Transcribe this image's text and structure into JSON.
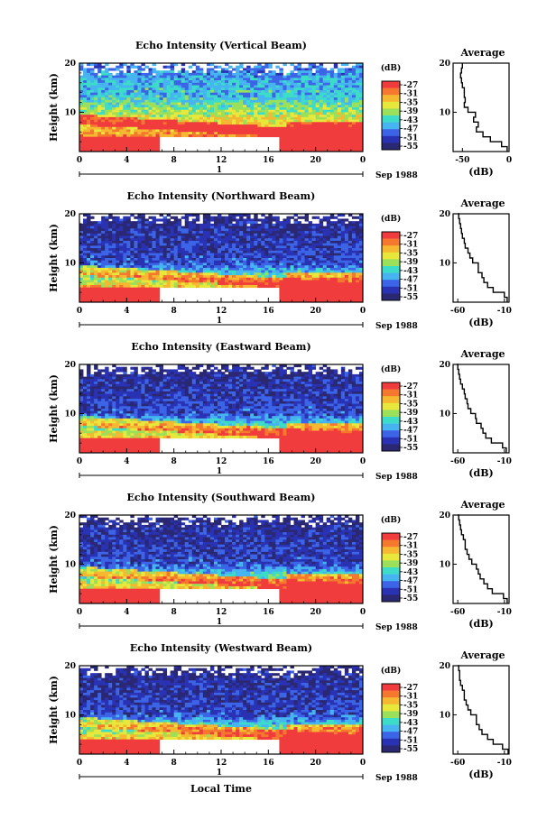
{
  "figure": {
    "xlabel": "Local Time",
    "date_label": "Sep 1988",
    "day_label": "1",
    "ylabel": "Height (km)",
    "colorbar_unit": "(dB)",
    "colorbar_ticks": [
      "-27",
      "-31",
      "-35",
      "-39",
      "-43",
      "-47",
      "-51",
      "-55"
    ],
    "colorbar_colors": [
      "#f03c3c",
      "#f5782e",
      "#f5b830",
      "#e8e83c",
      "#9be05a",
      "#3cdcc8",
      "#46b4f0",
      "#3c64e6",
      "#2a32b4",
      "#2a2872"
    ],
    "avg_title": "Average",
    "avg_xlabel": "(dB)"
  },
  "chart_data": [
    {
      "type": "heatmap",
      "title": "Echo Intensity (Vertical Beam)",
      "x_ticks": [
        "0",
        "4",
        "8",
        "12",
        "16",
        "20",
        "0"
      ],
      "y_ticks": [
        "20",
        "10"
      ],
      "xlim": [
        0,
        24
      ],
      "ylim": [
        2,
        20
      ],
      "no_data_hours": [
        6.8,
        17
      ],
      "profile": {
        "title": "Average",
        "x_ticks": [
          "-50",
          "0"
        ],
        "xlim": [
          -60,
          0
        ],
        "y_ticks": [
          "20",
          "10"
        ],
        "ylim": [
          2,
          20
        ],
        "height_km": [
          2,
          3,
          4,
          5,
          6,
          7,
          8,
          9,
          10,
          11,
          12,
          13,
          14,
          15,
          16,
          17,
          18,
          19,
          20
        ],
        "db": [
          -2,
          -8,
          -20,
          -28,
          -35,
          -33,
          -38,
          -36,
          -44,
          -48,
          -47,
          -48,
          -48,
          -50,
          -51,
          -52,
          -51,
          -50,
          -50
        ]
      }
    },
    {
      "type": "heatmap",
      "title": "Echo Intensity (Northward Beam)",
      "x_ticks": [
        "0",
        "4",
        "8",
        "12",
        "16",
        "20",
        "0"
      ],
      "y_ticks": [
        "20",
        "10"
      ],
      "xlim": [
        0,
        24
      ],
      "ylim": [
        2,
        20
      ],
      "no_data_hours": [
        6.8,
        17
      ],
      "profile": {
        "title": "Average",
        "x_ticks": [
          "-60",
          "-10"
        ],
        "xlim": [
          -65,
          -5
        ],
        "y_ticks": [
          "20",
          "10"
        ],
        "ylim": [
          2,
          20
        ],
        "height_km": [
          2,
          3,
          4,
          5,
          6,
          7,
          8,
          9,
          10,
          11,
          12,
          13,
          14,
          15,
          16,
          17,
          18,
          19,
          20
        ],
        "db": [
          -7,
          -10,
          -22,
          -28,
          -32,
          -34,
          -38,
          -38,
          -44,
          -47,
          -49,
          -52,
          -53,
          -55,
          -56,
          -57,
          -58,
          -59,
          -60
        ]
      }
    },
    {
      "type": "heatmap",
      "title": "Echo Intensity (Eastward Beam)",
      "x_ticks": [
        "0",
        "4",
        "8",
        "12",
        "16",
        "20",
        "0"
      ],
      "y_ticks": [
        "20",
        "10"
      ],
      "xlim": [
        0,
        24
      ],
      "ylim": [
        2,
        20
      ],
      "no_data_hours": [
        6.8,
        17
      ],
      "profile": {
        "title": "Average",
        "x_ticks": [
          "-60",
          "-10"
        ],
        "xlim": [
          -65,
          -5
        ],
        "y_ticks": [
          "20",
          "10"
        ],
        "ylim": [
          2,
          20
        ],
        "height_km": [
          2,
          3,
          4,
          5,
          6,
          7,
          8,
          9,
          10,
          11,
          12,
          13,
          14,
          15,
          16,
          17,
          18,
          19,
          20
        ],
        "db": [
          -8,
          -12,
          -24,
          -30,
          -33,
          -35,
          -40,
          -41,
          -46,
          -49,
          -50,
          -52,
          -53,
          -55,
          -57,
          -58,
          -59,
          -60,
          -61
        ]
      }
    },
    {
      "type": "heatmap",
      "title": "Echo Intensity (Southward Beam)",
      "x_ticks": [
        "0",
        "4",
        "8",
        "12",
        "16",
        "20",
        "0"
      ],
      "y_ticks": [
        "20",
        "10"
      ],
      "xlim": [
        0,
        24
      ],
      "ylim": [
        2,
        20
      ],
      "no_data_hours": [
        6.8,
        17
      ],
      "profile": {
        "title": "Average",
        "x_ticks": [
          "-60",
          "-10"
        ],
        "xlim": [
          -65,
          -5
        ],
        "y_ticks": [
          "20",
          "10"
        ],
        "ylim": [
          2,
          20
        ],
        "height_km": [
          2,
          3,
          4,
          5,
          6,
          7,
          8,
          9,
          10,
          11,
          12,
          13,
          14,
          15,
          16,
          17,
          18,
          19,
          20
        ],
        "db": [
          -7,
          -11,
          -23,
          -28,
          -32,
          -36,
          -38,
          -40,
          -45,
          -48,
          -50,
          -52,
          -52,
          -54,
          -56,
          -57,
          -58,
          -59,
          -60
        ]
      }
    },
    {
      "type": "heatmap",
      "title": "Echo Intensity (Westward Beam)",
      "x_ticks": [
        "0",
        "4",
        "8",
        "12",
        "16",
        "20",
        "0"
      ],
      "y_ticks": [
        "20",
        "10"
      ],
      "xlim": [
        0,
        24
      ],
      "ylim": [
        2,
        20
      ],
      "no_data_hours": [
        6.8,
        17
      ],
      "profile": {
        "title": "Average",
        "x_ticks": [
          "-60",
          "-10"
        ],
        "xlim": [
          -65,
          -5
        ],
        "y_ticks": [
          "20",
          "10"
        ],
        "ylim": [
          2,
          20
        ],
        "height_km": [
          2,
          3,
          4,
          5,
          6,
          7,
          8,
          9,
          10,
          11,
          12,
          13,
          14,
          15,
          16,
          17,
          18,
          19,
          20
        ],
        "db": [
          -6,
          -12,
          -22,
          -28,
          -34,
          -37,
          -40,
          -40,
          -46,
          -49,
          -51,
          -53,
          -53,
          -55,
          -57,
          -58,
          -58,
          -59,
          -60
        ]
      }
    }
  ]
}
